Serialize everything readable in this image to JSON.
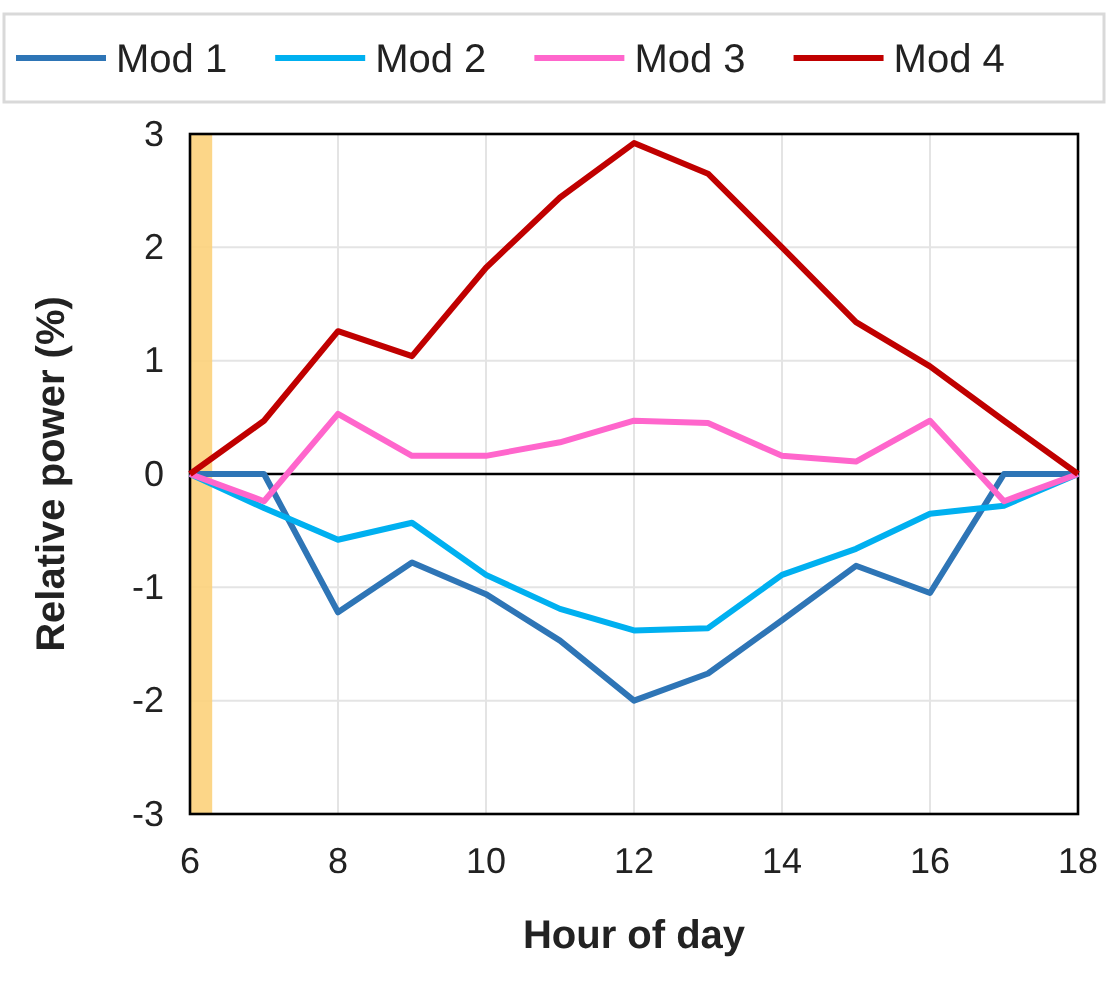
{
  "chart_data": {
    "type": "line",
    "xlabel": "Hour of day",
    "ylabel": "Relative power (%)",
    "x": [
      6,
      7,
      8,
      9,
      10,
      11,
      12,
      13,
      14,
      15,
      16,
      17,
      18
    ],
    "series": [
      {
        "name": "Mod 1",
        "color": "#2e75b6",
        "values": [
          0,
          0,
          -1.22,
          -0.78,
          -1.06,
          -1.47,
          -2.0,
          -1.76,
          -1.29,
          -0.81,
          -1.05,
          0,
          0
        ]
      },
      {
        "name": "Mod 2",
        "color": "#00b0f0",
        "values": [
          0,
          -0.3,
          -0.58,
          -0.43,
          -0.89,
          -1.19,
          -1.38,
          -1.36,
          -0.89,
          -0.66,
          -0.35,
          -0.28,
          0
        ]
      },
      {
        "name": "Mod 3",
        "color": "#ff66cc",
        "values": [
          0,
          -0.24,
          0.53,
          0.16,
          0.16,
          0.28,
          0.47,
          0.45,
          0.16,
          0.11,
          0.47,
          -0.24,
          0
        ]
      },
      {
        "name": "Mod 4",
        "color": "#c00000",
        "values": [
          0,
          0.47,
          1.26,
          1.04,
          1.82,
          2.44,
          2.92,
          2.65,
          2.0,
          1.34,
          0.95,
          0.47,
          0
        ]
      }
    ],
    "xlim": [
      6,
      18
    ],
    "xticks": [
      6,
      8,
      10,
      12,
      14,
      16,
      18
    ],
    "ylim": [
      -3,
      3
    ],
    "yticks": [
      -3,
      -2,
      -1,
      0,
      1,
      2,
      3
    ],
    "bands": [
      {
        "axis": "x",
        "from": 6,
        "to": 6.3,
        "color": "#fcd27b"
      }
    ],
    "grid": true,
    "legend": "top",
    "marker": "none",
    "line_style": "solid"
  }
}
